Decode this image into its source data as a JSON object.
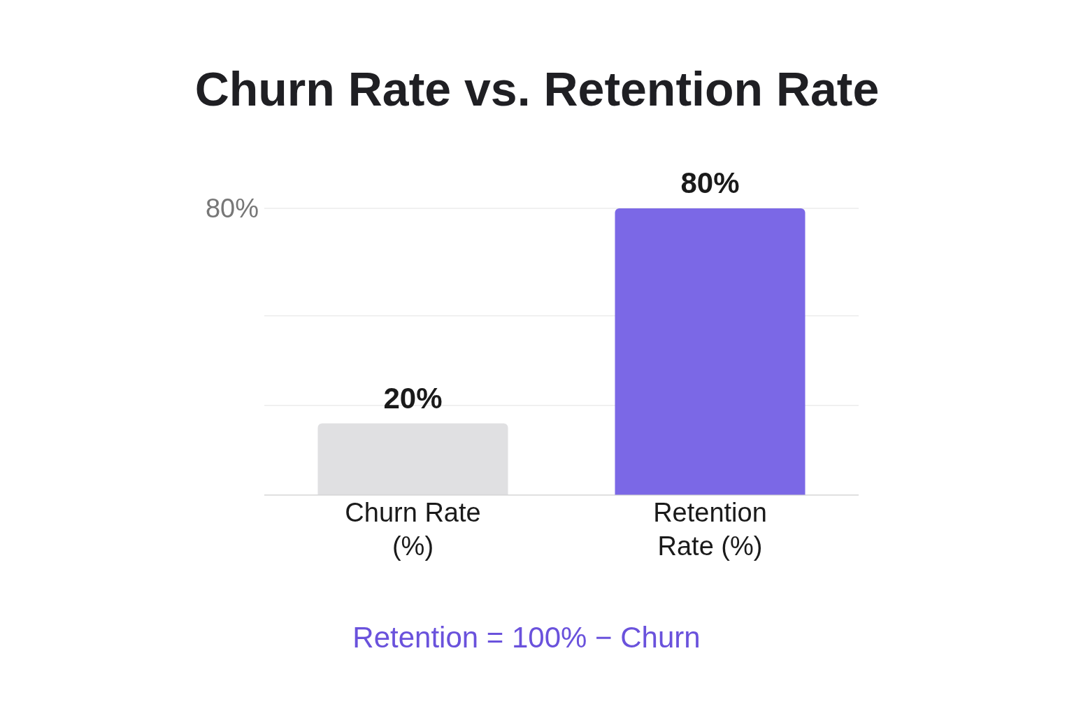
{
  "chart_data": {
    "type": "bar",
    "title": "Churn Rate vs. Retention Rate",
    "categories": [
      "Churn Rate (%)",
      "Retention Rate (%)"
    ],
    "values": [
      20,
      80
    ],
    "colors": [
      "#e0e0e2",
      "#7b68e6"
    ],
    "value_labels": [
      "20%",
      "80%"
    ],
    "ylim": [
      0,
      80
    ],
    "yticks": [
      {
        "value": 0,
        "label": null
      },
      {
        "value": 25,
        "label": null
      },
      {
        "value": 50,
        "label": null
      },
      {
        "value": 80,
        "label": "80%"
      }
    ],
    "grid": "y",
    "annotations": [
      "Retention = 100% − Churn"
    ]
  }
}
